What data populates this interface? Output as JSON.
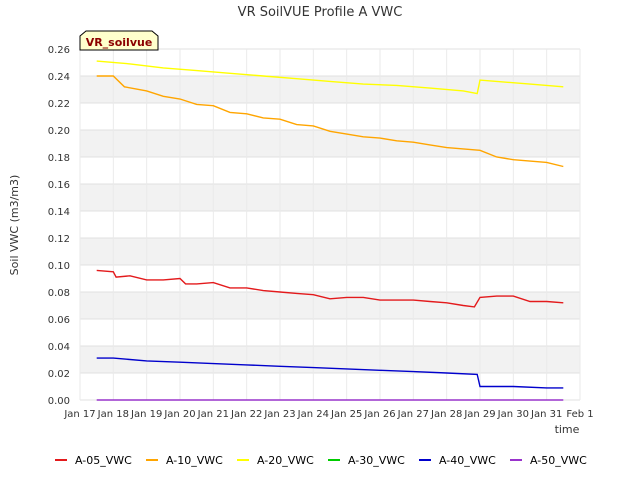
{
  "chart_data": {
    "type": "line",
    "title": "VR SoilVUE Profile A VWC",
    "badge": "VR_soilvue",
    "xlabel": "time",
    "ylabel": "Soil VWC (m3/m3)",
    "ylim": [
      0,
      0.26
    ],
    "yticks": [
      "0.00",
      "0.02",
      "0.04",
      "0.06",
      "0.08",
      "0.10",
      "0.12",
      "0.14",
      "0.16",
      "0.18",
      "0.20",
      "0.22",
      "0.24",
      "0.26"
    ],
    "xlim": [
      "2025-01-17",
      "2025-02-01"
    ],
    "xticks": [
      "Jan 17",
      "Jan 18",
      "Jan 19",
      "Jan 20",
      "Jan 21",
      "Jan 22",
      "Jan 23",
      "Jan 24",
      "Jan 25",
      "Jan 26",
      "Jan 27",
      "Jan 28",
      "Jan 29",
      "Jan 30",
      "Jan 31",
      "Feb 1"
    ],
    "grid": true,
    "legend_position": "bottom",
    "series": [
      {
        "name": "A-05_VWC",
        "color": "#e31a1c",
        "x": [
          "2025-01-17 12:00",
          "2025-01-18 00:00",
          "2025-01-18 02:00",
          "2025-01-18 12:00",
          "2025-01-19 00:00",
          "2025-01-19 12:00",
          "2025-01-20 00:00",
          "2025-01-20 04:00",
          "2025-01-20 12:00",
          "2025-01-21 00:00",
          "2025-01-21 12:00",
          "2025-01-22 00:00",
          "2025-01-22 12:00",
          "2025-01-23 00:00",
          "2025-01-23 12:00",
          "2025-01-24 00:00",
          "2025-01-24 12:00",
          "2025-01-25 00:00",
          "2025-01-25 12:00",
          "2025-01-26 00:00",
          "2025-01-26 12:00",
          "2025-01-27 00:00",
          "2025-01-27 12:00",
          "2025-01-28 00:00",
          "2025-01-28 12:00",
          "2025-01-28 20:00",
          "2025-01-29 00:00",
          "2025-01-29 12:00",
          "2025-01-30 00:00",
          "2025-01-30 12:00",
          "2025-01-31 00:00",
          "2025-01-31 12:00"
        ],
        "y": [
          0.096,
          0.095,
          0.091,
          0.092,
          0.089,
          0.089,
          0.09,
          0.086,
          0.086,
          0.087,
          0.083,
          0.083,
          0.081,
          0.08,
          0.079,
          0.078,
          0.075,
          0.076,
          0.076,
          0.074,
          0.074,
          0.074,
          0.073,
          0.072,
          0.07,
          0.069,
          0.076,
          0.077,
          0.077,
          0.073,
          0.073,
          0.072
        ]
      },
      {
        "name": "A-10_VWC",
        "color": "#ffa500",
        "x": [
          "2025-01-17 12:00",
          "2025-01-18 00:00",
          "2025-01-18 08:00",
          "2025-01-19 00:00",
          "2025-01-19 12:00",
          "2025-01-20 00:00",
          "2025-01-20 12:00",
          "2025-01-21 00:00",
          "2025-01-21 12:00",
          "2025-01-22 00:00",
          "2025-01-22 12:00",
          "2025-01-23 00:00",
          "2025-01-23 12:00",
          "2025-01-24 00:00",
          "2025-01-24 12:00",
          "2025-01-25 00:00",
          "2025-01-25 12:00",
          "2025-01-26 00:00",
          "2025-01-26 12:00",
          "2025-01-27 00:00",
          "2025-01-27 12:00",
          "2025-01-28 00:00",
          "2025-01-28 12:00",
          "2025-01-29 00:00",
          "2025-01-29 12:00",
          "2025-01-30 00:00",
          "2025-01-30 12:00",
          "2025-01-31 00:00",
          "2025-01-31 12:00"
        ],
        "y": [
          0.24,
          0.24,
          0.232,
          0.229,
          0.225,
          0.223,
          0.219,
          0.218,
          0.213,
          0.212,
          0.209,
          0.208,
          0.204,
          0.203,
          0.199,
          0.197,
          0.195,
          0.194,
          0.192,
          0.191,
          0.189,
          0.187,
          0.186,
          0.185,
          0.18,
          0.178,
          0.177,
          0.176,
          0.173
        ]
      },
      {
        "name": "A-20_VWC",
        "color": "#ffff00",
        "x": [
          "2025-01-17 12:00",
          "2025-01-18 12:00",
          "2025-01-19 12:00",
          "2025-01-20 12:00",
          "2025-01-21 12:00",
          "2025-01-22 12:00",
          "2025-01-23 12:00",
          "2025-01-24 12:00",
          "2025-01-25 12:00",
          "2025-01-26 12:00",
          "2025-01-27 12:00",
          "2025-01-28 12:00",
          "2025-01-28 22:00",
          "2025-01-29 00:00",
          "2025-01-29 12:00",
          "2025-01-30 12:00",
          "2025-01-31 12:00"
        ],
        "y": [
          0.251,
          0.249,
          0.246,
          0.244,
          0.242,
          0.24,
          0.238,
          0.236,
          0.234,
          0.233,
          0.231,
          0.229,
          0.227,
          0.237,
          0.236,
          0.234,
          0.232
        ]
      },
      {
        "name": "A-30_VWC",
        "color": "#00cc00",
        "x": [],
        "y": []
      },
      {
        "name": "A-40_VWC",
        "color": "#0000cc",
        "x": [
          "2025-01-17 12:00",
          "2025-01-18 00:00",
          "2025-01-19 00:00",
          "2025-01-20 00:00",
          "2025-01-21 00:00",
          "2025-01-22 00:00",
          "2025-01-23 00:00",
          "2025-01-24 00:00",
          "2025-01-25 00:00",
          "2025-01-26 00:00",
          "2025-01-27 00:00",
          "2025-01-28 00:00",
          "2025-01-28 22:00",
          "2025-01-29 00:00",
          "2025-01-30 00:00",
          "2025-01-31 00:00",
          "2025-01-31 12:00"
        ],
        "y": [
          0.031,
          0.031,
          0.029,
          0.028,
          0.027,
          0.026,
          0.025,
          0.024,
          0.023,
          0.022,
          0.021,
          0.02,
          0.019,
          0.01,
          0.01,
          0.009,
          0.009
        ]
      },
      {
        "name": "A-50_VWC",
        "color": "#9933cc",
        "x": [
          "2025-01-17 12:00",
          "2025-01-31 12:00"
        ],
        "y": [
          0.0,
          0.0
        ]
      }
    ]
  }
}
